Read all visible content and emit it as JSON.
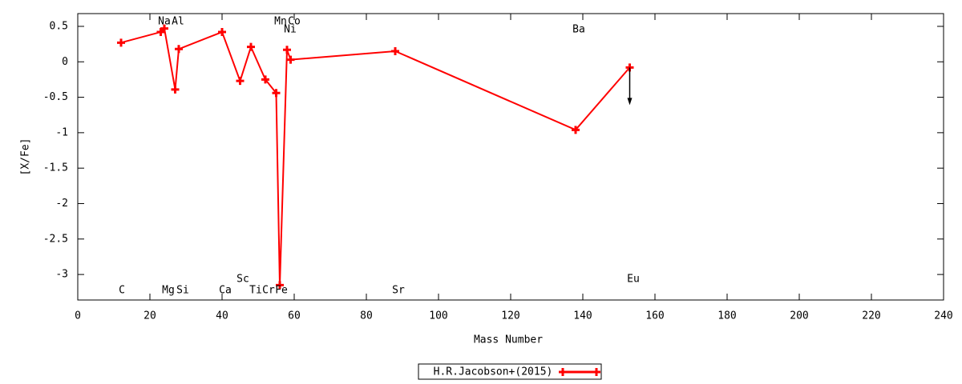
{
  "chart_data": {
    "type": "line",
    "xlabel": "Mass Number",
    "ylabel": "[X/Fe]",
    "xlim": [
      0,
      240
    ],
    "ylim": [
      -3.36,
      0.68
    ],
    "xticks": [
      0,
      20,
      40,
      60,
      80,
      100,
      120,
      140,
      160,
      180,
      200,
      220,
      240
    ],
    "yticks": [
      0.5,
      0,
      -0.5,
      -1,
      -1.5,
      -2,
      -2.5,
      -3
    ],
    "series": [
      {
        "name": "H.R.Jacobson+(2015)",
        "color": "#ff0000",
        "x": [
          12,
          23,
          24,
          27,
          28,
          40,
          45,
          48,
          52,
          55,
          56,
          58,
          59,
          88,
          138,
          153
        ],
        "values": [
          0.27,
          0.42,
          0.47,
          -0.39,
          0.18,
          0.42,
          -0.27,
          0.21,
          -0.25,
          -0.44,
          -3.15,
          0.17,
          0.03,
          0.15,
          -0.96,
          -0.08
        ]
      }
    ],
    "annotations": [
      "C",
      "Na",
      "Al",
      "Mg",
      "Si",
      "Ca",
      "Sc",
      "Ti",
      "Cr",
      "Fe",
      "Mn",
      "Co",
      "Ni",
      "Sr",
      "Ba",
      "Eu"
    ]
  }
}
